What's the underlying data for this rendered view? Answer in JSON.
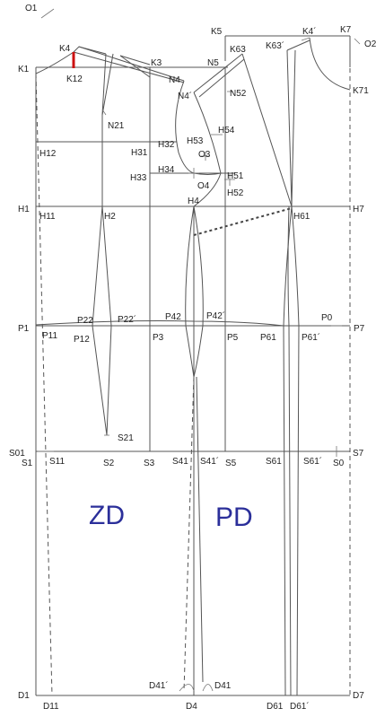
{
  "labels": {
    "O1": "O1",
    "O2": "O2",
    "K1": "K1",
    "K3": "K3",
    "K4": "K4",
    "K4p": "K4´",
    "K5": "K5",
    "K7": "K7",
    "K12": "K12",
    "K63": "K63",
    "K63p": "K63´",
    "K71": "K71",
    "N4": "N4",
    "N4p": "N4´",
    "N5": "N5",
    "N21": "N21",
    "N52": "N52",
    "H1": "H1",
    "H2": "H2",
    "H4": "H4",
    "H7": "H7",
    "H11": "H11",
    "H12": "H12",
    "H31": "H31",
    "H32": "H32",
    "H33": "H33",
    "H34": "H34",
    "H51": "H51",
    "H52": "H52",
    "H53": "H53",
    "H54": "H54",
    "H61": "H61",
    "O3": "O3",
    "O4": "O4",
    "P0": "P0",
    "P1": "P1",
    "P3": "P3",
    "P5": "P5",
    "P7": "P7",
    "P11": "P11",
    "P12": "P12",
    "P22": "P22",
    "P22p": "P22´",
    "P42": "P42",
    "P42p": "P42´",
    "P61": "P61",
    "P61p": "P61´",
    "S0": "S0",
    "S01": "S01",
    "S1": "S1",
    "S2": "S2",
    "S3": "S3",
    "S5": "S5",
    "S7": "S7",
    "S11": "S11",
    "S21": "S21",
    "S41": "S41",
    "S41p": "S41´",
    "S61": "S61",
    "S61p": "S61´",
    "D1": "D1",
    "D4": "D4",
    "D7": "D7",
    "D11": "D11",
    "D41": "D41",
    "D41p": "D41´",
    "D61": "D61",
    "D61p": "D61´"
  },
  "panels": {
    "back": "ZD",
    "front": "PD"
  },
  "colors": {
    "lines": "#555555",
    "panel_text": "#2b2f9a",
    "marker": "#cc1111"
  }
}
